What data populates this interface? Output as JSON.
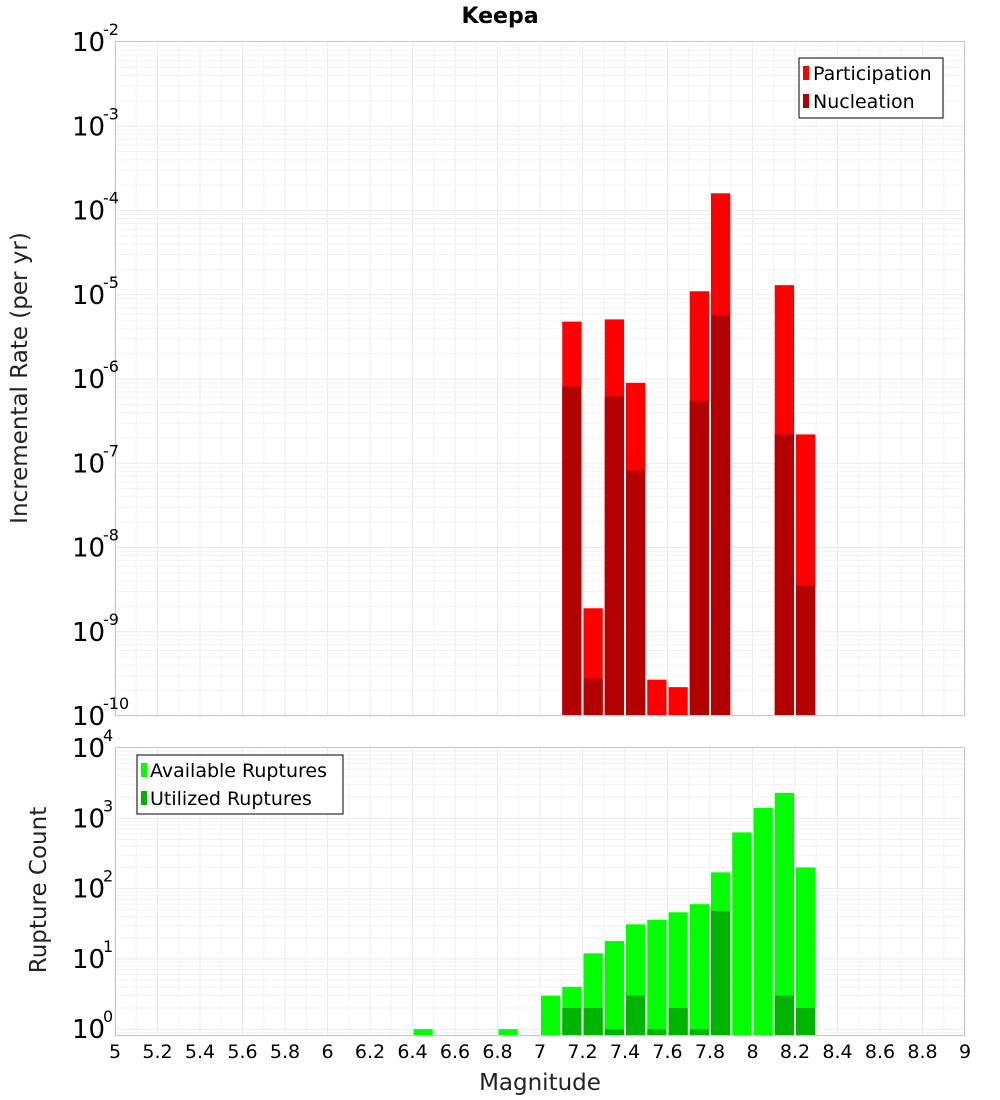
{
  "chart_data": [
    {
      "type": "bar",
      "scale": "log",
      "title": "Keepa",
      "xlabel": "Magnitude",
      "ylabel": "Incremental Rate (per yr)",
      "xlim": [
        5,
        9
      ],
      "ylim": [
        1e-10,
        0.01
      ],
      "ytick_exponents": [
        "-10",
        "-9",
        "-8",
        "-7",
        "-6",
        "-5",
        "-4",
        "-3",
        "-2"
      ],
      "ytick_base": "10",
      "bin_width": 0.1,
      "legend": {
        "position": "top-right"
      },
      "series": [
        {
          "name": "Participation",
          "color": "#ff0000",
          "points": [
            {
              "x": 7.15,
              "y": 4.8e-06
            },
            {
              "x": 7.25,
              "y": 1.9e-09
            },
            {
              "x": 7.35,
              "y": 5.1e-06
            },
            {
              "x": 7.45,
              "y": 9e-07
            },
            {
              "x": 7.55,
              "y": 2.7e-10
            },
            {
              "x": 7.65,
              "y": 2.2e-10
            },
            {
              "x": 7.75,
              "y": 1.1e-05
            },
            {
              "x": 7.85,
              "y": 0.00016
            },
            {
              "x": 8.15,
              "y": 1.3e-05
            },
            {
              "x": 8.25,
              "y": 2.2e-07
            }
          ]
        },
        {
          "name": "Nucleation",
          "color": "#b30000",
          "points": [
            {
              "x": 7.15,
              "y": 8.2e-07
            },
            {
              "x": 7.25,
              "y": 2.8e-10
            },
            {
              "x": 7.35,
              "y": 6.2e-07
            },
            {
              "x": 7.45,
              "y": 8.2e-08
            },
            {
              "x": 7.75,
              "y": 5.5e-07
            },
            {
              "x": 7.85,
              "y": 5.7e-06
            },
            {
              "x": 8.15,
              "y": 2.2e-07
            },
            {
              "x": 8.25,
              "y": 3.5e-09
            }
          ]
        }
      ]
    },
    {
      "type": "bar",
      "scale": "log",
      "title": "",
      "xlabel": "Magnitude",
      "ylabel": "Rupture Count",
      "xlim": [
        5,
        9
      ],
      "ylim": [
        0.8,
        10000.0
      ],
      "ytick_exponents": [
        "0",
        "1",
        "2",
        "3",
        "4"
      ],
      "ytick_base": "10",
      "bin_width": 0.1,
      "legend": {
        "position": "top-left"
      },
      "series": [
        {
          "name": "Available Ruptures",
          "color": "#00ff00",
          "points": [
            {
              "x": 6.45,
              "y": 1
            },
            {
              "x": 6.85,
              "y": 1
            },
            {
              "x": 7.05,
              "y": 3
            },
            {
              "x": 7.15,
              "y": 4
            },
            {
              "x": 7.25,
              "y": 12
            },
            {
              "x": 7.35,
              "y": 18
            },
            {
              "x": 7.45,
              "y": 31
            },
            {
              "x": 7.55,
              "y": 36
            },
            {
              "x": 7.65,
              "y": 46
            },
            {
              "x": 7.75,
              "y": 60
            },
            {
              "x": 7.85,
              "y": 170
            },
            {
              "x": 7.95,
              "y": 630
            },
            {
              "x": 8.05,
              "y": 1400
            },
            {
              "x": 8.15,
              "y": 2300
            },
            {
              "x": 8.25,
              "y": 200
            }
          ]
        },
        {
          "name": "Utilized Ruptures",
          "color": "#00b300",
          "points": [
            {
              "x": 7.15,
              "y": 2
            },
            {
              "x": 7.25,
              "y": 2
            },
            {
              "x": 7.35,
              "y": 1
            },
            {
              "x": 7.45,
              "y": 3
            },
            {
              "x": 7.55,
              "y": 1
            },
            {
              "x": 7.65,
              "y": 2
            },
            {
              "x": 7.75,
              "y": 1
            },
            {
              "x": 7.85,
              "y": 48
            },
            {
              "x": 8.15,
              "y": 3
            },
            {
              "x": 8.25,
              "y": 2
            }
          ]
        }
      ]
    }
  ],
  "x_ticks": [
    "5",
    "5.2",
    "5.4",
    "5.6",
    "5.8",
    "6",
    "6.2",
    "6.4",
    "6.6",
    "6.8",
    "7",
    "7.2",
    "7.4",
    "7.6",
    "7.8",
    "8",
    "8.2",
    "8.4",
    "8.6",
    "8.8",
    "9"
  ]
}
